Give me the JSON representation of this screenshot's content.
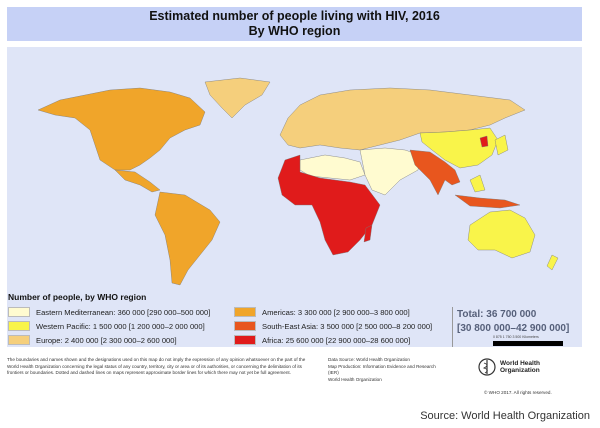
{
  "title": {
    "line1": "Estimated number of people living with HIV, 2016",
    "line2": "By WHO region"
  },
  "legend": {
    "title": "Number of people, by WHO region",
    "items": [
      {
        "label": "Eastern Mediterranean: 360 000 [290 000–500 000]",
        "color": "#fffbd0"
      },
      {
        "label": "Western Pacific: 1 500 000 [1 200 000–2 000 000]",
        "color": "#f9f44a"
      },
      {
        "label": "Europe: 2 400 000 [2 300 000–2 600 000]",
        "color": "#f5cf7c"
      },
      {
        "label": "Americas: 3 300 000 [2 900 000–3 800 000]",
        "color": "#f0a52a"
      },
      {
        "label": "South-East Asia: 3 500 000 [2 500 000–8 200 000]",
        "color": "#e8561e"
      },
      {
        "label": "Africa: 25 600 000 [22 900 000–28 600 000]",
        "color": "#e01b1b"
      }
    ]
  },
  "total": {
    "line1": "Total: 36 700 000",
    "line2": "[30 800 000–42 900 000]"
  },
  "scale_bar": {
    "labels": "0   875  1 750        3 500 Kilometers"
  },
  "disclaimer": "The boundaries and names shown and the designations used on this map do not imply the expression of any opinion whatsoever on the part of the World Health Organization concerning the legal status of any country, territory, city or area or of its authorities, or concerning the delimitation of its frontiers or boundaries. Dotted and dashed lines on maps represent approximate border lines for which there may not yet be full agreement.",
  "data_source": {
    "line1": "Data Source: World Health Organization",
    "line2": "Map Production: Information Evidence and Research (IER)",
    "line3": "World Health Organization"
  },
  "who": {
    "name": "World Health Organization",
    "copyright": "© WHO 2017. All rights reserved."
  },
  "source": "Source: World Health Organization"
}
